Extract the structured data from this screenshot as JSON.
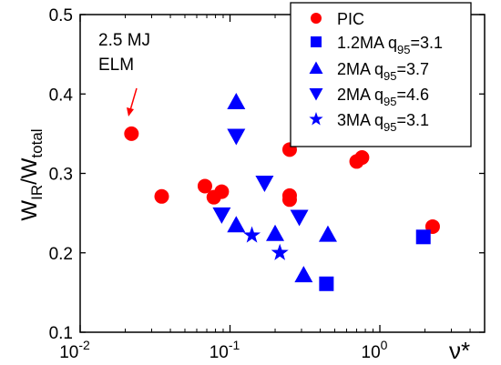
{
  "chart_data": {
    "type": "scatter",
    "xscale": "log",
    "xlim": [
      0.01,
      5
    ],
    "ylim": [
      0.1,
      0.5
    ],
    "ylabel": "W_IR/W_total",
    "xlabel": "ν*",
    "yticks": [
      "0.1",
      "0.2",
      "0.3",
      "0.4",
      "0.5"
    ],
    "xticks": [
      {
        "base": "10",
        "exp": "-2"
      },
      {
        "base": "10",
        "exp": "-1"
      },
      {
        "base": "10",
        "exp": "0"
      }
    ],
    "annotation": {
      "lines": [
        "2.5 MJ",
        "ELM"
      ],
      "color": "#ff0000"
    },
    "colors": {
      "PIC": "#ff0000",
      "other": "#0000ff"
    },
    "series": [
      {
        "name": "PIC",
        "label": {
          "pre": "PIC",
          "sub": "",
          "post": ""
        },
        "marker": "circle",
        "color": "#ff0000",
        "points": [
          {
            "x": 0.022,
            "y": 0.35
          },
          {
            "x": 0.035,
            "y": 0.271
          },
          {
            "x": 0.068,
            "y": 0.284
          },
          {
            "x": 0.078,
            "y": 0.27
          },
          {
            "x": 0.088,
            "y": 0.277
          },
          {
            "x": 0.25,
            "y": 0.33
          },
          {
            "x": 0.25,
            "y": 0.272
          },
          {
            "x": 0.25,
            "y": 0.267
          },
          {
            "x": 0.7,
            "y": 0.315
          },
          {
            "x": 0.76,
            "y": 0.32
          },
          {
            "x": 2.25,
            "y": 0.233
          }
        ]
      },
      {
        "name": "1.2MA q95=3.1",
        "label": {
          "pre": "1.2MA q",
          "sub": "95",
          "post": "=3.1"
        },
        "marker": "square",
        "color": "#0000ff",
        "points": [
          {
            "x": 0.44,
            "y": 0.161
          },
          {
            "x": 1.95,
            "y": 0.22
          }
        ]
      },
      {
        "name": "2MA q95=3.7",
        "label": {
          "pre": "2MA q",
          "sub": "95",
          "post": "=3.7"
        },
        "marker": "triangle-up",
        "color": "#0000ff",
        "points": [
          {
            "x": 0.11,
            "y": 0.39
          },
          {
            "x": 0.11,
            "y": 0.235
          },
          {
            "x": 0.2,
            "y": 0.224
          },
          {
            "x": 0.31,
            "y": 0.172
          },
          {
            "x": 0.45,
            "y": 0.223
          }
        ]
      },
      {
        "name": "2MA q95=4.6",
        "label": {
          "pre": "2MA q",
          "sub": "95",
          "post": "=4.6"
        },
        "marker": "triangle-down",
        "color": "#0000ff",
        "points": [
          {
            "x": 0.11,
            "y": 0.347
          },
          {
            "x": 0.088,
            "y": 0.248
          },
          {
            "x": 0.17,
            "y": 0.288
          },
          {
            "x": 0.29,
            "y": 0.245
          }
        ]
      },
      {
        "name": "3MA q95=3.1",
        "label": {
          "pre": "3MA q",
          "sub": "95",
          "post": "=3.1"
        },
        "marker": "star",
        "color": "#0000ff",
        "points": [
          {
            "x": 0.14,
            "y": 0.222
          },
          {
            "x": 0.215,
            "y": 0.2
          }
        ]
      }
    ]
  }
}
